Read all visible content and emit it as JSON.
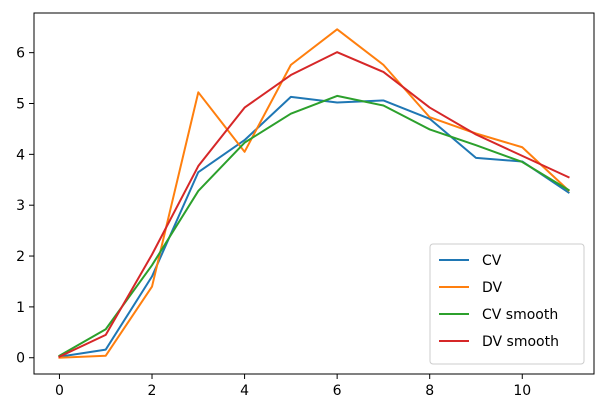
{
  "chart_data": {
    "type": "line",
    "title": "",
    "xlabel": "",
    "ylabel": "",
    "x": [
      0,
      1,
      2,
      3,
      4,
      5,
      6,
      7,
      8,
      9,
      10,
      11
    ],
    "xlim": [
      -0.55,
      11.55
    ],
    "ylim": [
      -0.32,
      6.78
    ],
    "xticks": [
      0,
      2,
      4,
      6,
      8,
      10
    ],
    "yticks": [
      0,
      1,
      2,
      3,
      4,
      5,
      6
    ],
    "grid": false,
    "legend_position": "lower-right",
    "series": [
      {
        "name": "CV",
        "color": "#1f77b4",
        "values": [
          0.02,
          0.16,
          1.6,
          3.65,
          4.28,
          5.13,
          5.02,
          5.06,
          4.7,
          3.93,
          3.86,
          3.25
        ]
      },
      {
        "name": "DV",
        "color": "#ff7f0e",
        "values": [
          0.0,
          0.04,
          1.4,
          5.22,
          4.05,
          5.76,
          6.46,
          5.76,
          4.73,
          4.41,
          4.14,
          3.29
        ]
      },
      {
        "name": "CV smooth",
        "color": "#2ca02c",
        "values": [
          0.04,
          0.56,
          1.82,
          3.28,
          4.23,
          4.8,
          5.15,
          4.96,
          4.49,
          4.18,
          3.85,
          3.3
        ]
      },
      {
        "name": "DV smooth",
        "color": "#d62728",
        "values": [
          0.02,
          0.45,
          2.03,
          3.77,
          4.92,
          5.56,
          6.01,
          5.62,
          4.92,
          4.39,
          3.97,
          3.55
        ]
      }
    ]
  }
}
